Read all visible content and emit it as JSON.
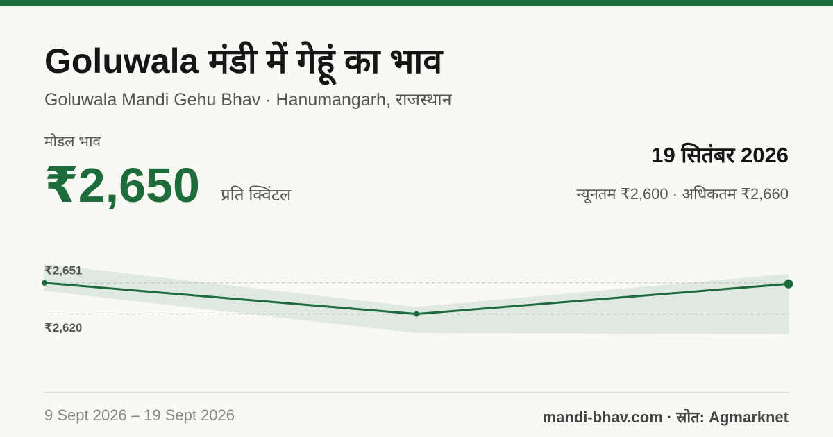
{
  "header": {
    "title": "Goluwala मंडी में गेहूं का भाव",
    "subtitle": "Goluwala Mandi Gehu Bhav · Hanumangarh, राजस्थान"
  },
  "summary": {
    "modal_label": "मोडल भाव",
    "modal_price": "₹2,650",
    "unit": "प्रति क्विंटल",
    "date": "19 सितंबर 2026",
    "min_max": "न्यूनतम ₹2,600 · अधिकतम ₹2,660"
  },
  "chart_data": {
    "type": "line",
    "values": [
      2651,
      2620,
      2650
    ],
    "low": [
      2643,
      2601,
      2600
    ],
    "high": [
      2670,
      2627,
      2660
    ],
    "color": "#1e6b3b",
    "band_color": "#dfe8e1",
    "ylim": [
      2590,
      2680
    ],
    "yticks": [
      {
        "value": 2651,
        "label": "₹2,651"
      },
      {
        "value": 2620,
        "label": "₹2,620"
      }
    ],
    "grid": true
  },
  "footer": {
    "date_range": "9 Sept 2026 – 19 Sept 2026",
    "source": "mandi-bhav.com · स्रोत: Agmarknet"
  }
}
